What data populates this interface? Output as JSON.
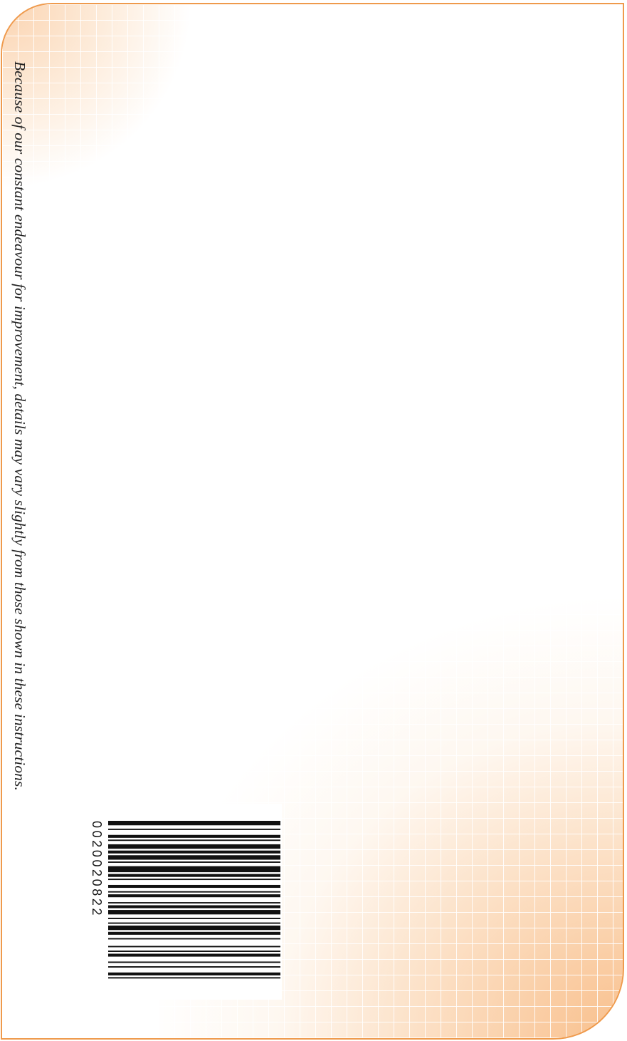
{
  "page": {
    "notice": "Because of our constant endeavour for improvement, details may vary slightly from those shown in these instructions.",
    "barcode_number": "0020020822",
    "colors": {
      "frame": "#ef9a4c",
      "accent_light": "#fad2ad",
      "text": "#222222",
      "bars": "#111111"
    }
  },
  "barcode": {
    "bar_widths": [
      3,
      2,
      1,
      3,
      2,
      1,
      1,
      2,
      3,
      1,
      2,
      1,
      3,
      1,
      1,
      2,
      4,
      1,
      2,
      1,
      1,
      3,
      2,
      2,
      1,
      1,
      2,
      3,
      1,
      1,
      2,
      1,
      3,
      2,
      1,
      2,
      1,
      1,
      3,
      1,
      2,
      2,
      1,
      4,
      1,
      2,
      1,
      1,
      2,
      3,
      1,
      2,
      1,
      3,
      2,
      1,
      1,
      2
    ]
  }
}
